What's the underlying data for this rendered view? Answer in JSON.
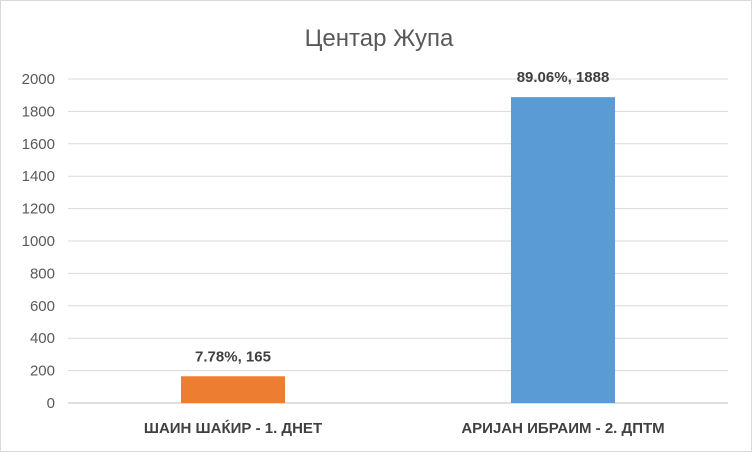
{
  "chart_data": {
    "type": "bar",
    "title": "Центар Жупа",
    "categories": [
      "ШАИН ШАЌИР -  1. ДНЕТ",
      "АРИЈАН ИБРАИМ - 2. ДПТМ"
    ],
    "values": [
      165,
      1888
    ],
    "data_labels": [
      "7.78%, 165",
      "89.06%, 1888"
    ],
    "colors": [
      "#ed7d31",
      "#5b9bd5"
    ],
    "ylim": [
      0,
      2000
    ],
    "yticks": [
      "0",
      "200",
      "400",
      "600",
      "800",
      "1000",
      "1200",
      "1400",
      "1600",
      "1800",
      "2000"
    ],
    "grid": true,
    "legend": "none"
  }
}
